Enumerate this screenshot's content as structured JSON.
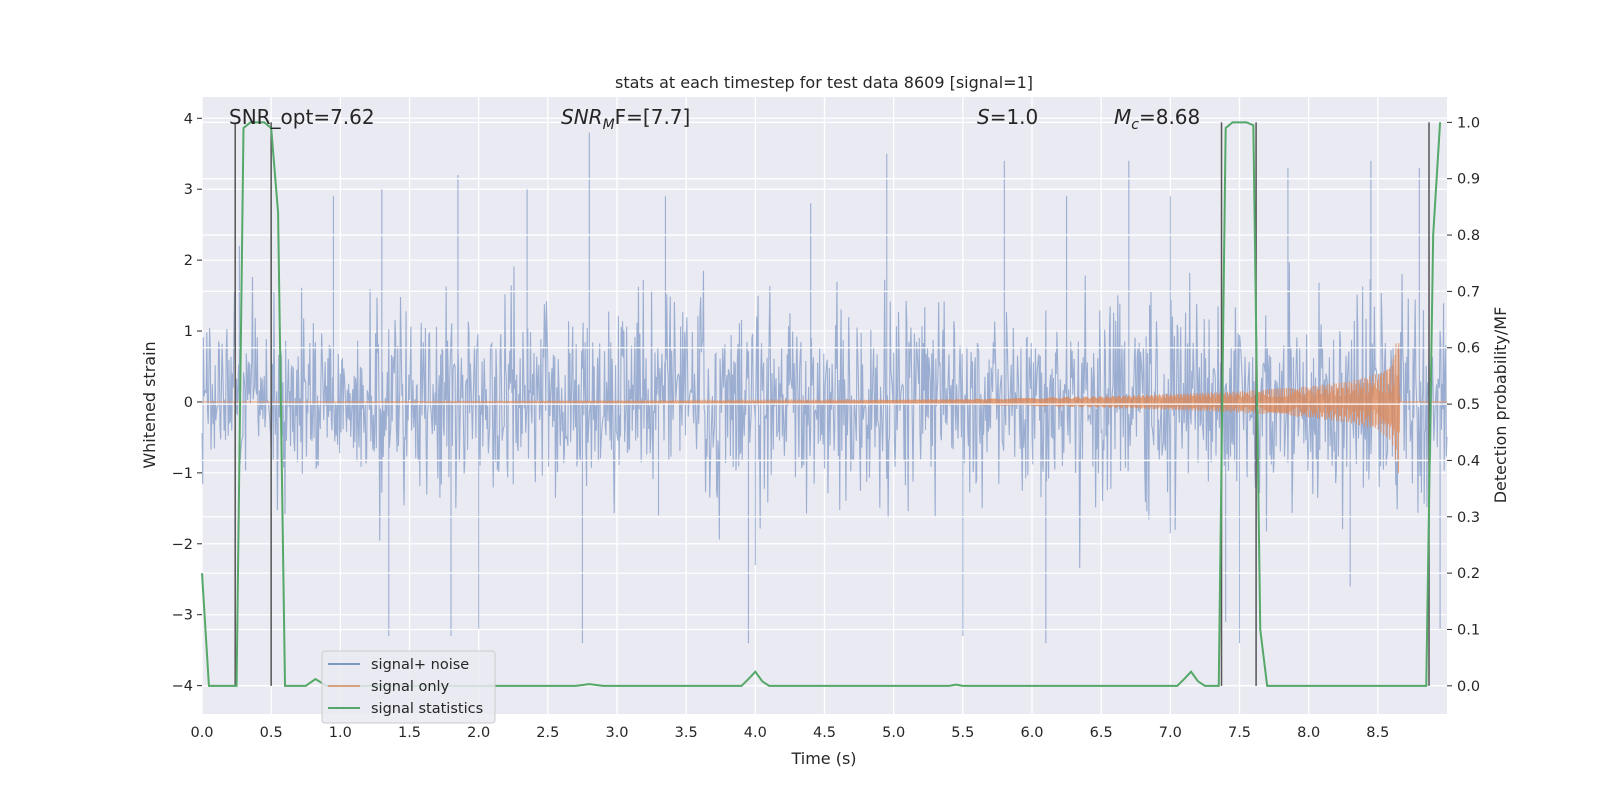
{
  "chart_data": {
    "type": "line",
    "title": "stats at each timestep for test data 8609 [signal=1]",
    "xlabel": "Time (s)",
    "ylabel": "Whitened strain",
    "y2label": "Detection probability/MF",
    "xlim": [
      0.0,
      9.0
    ],
    "ylim": [
      -4.4,
      4.3
    ],
    "y2lim": [
      -0.05,
      1.045
    ],
    "x_ticks": [
      "0.0",
      "0.5",
      "1.0",
      "1.5",
      "2.0",
      "2.5",
      "3.0",
      "3.5",
      "4.0",
      "4.5",
      "5.0",
      "5.5",
      "6.0",
      "6.5",
      "7.0",
      "7.5",
      "8.0",
      "8.5"
    ],
    "y_ticks": [
      "4",
      "3",
      "2",
      "1",
      "0",
      "−1",
      "−2",
      "−3",
      "−4"
    ],
    "y2_ticks": [
      "1.0",
      "0.9",
      "0.8",
      "0.7",
      "0.6",
      "0.5",
      "0.4",
      "0.3",
      "0.2",
      "0.1",
      "0.0"
    ],
    "grid": true,
    "legend_position": "lower-left",
    "annotations": {
      "snr_opt": "SNR_opt=7.62",
      "snr_mf_main": "SNR",
      "snr_mf_sub": "M",
      "snr_mf_rest": "F=[7.7]",
      "s_main": "S",
      "s_rest": "=1.0",
      "mc_main": "M",
      "mc_sub": "c",
      "mc_rest": "=8.68"
    },
    "series": [
      {
        "name": "signal+ noise",
        "color": "#4c72b0",
        "style": "dense noisy strain, amplitude ~±2 with spikes to about ±3.8",
        "spikes": [
          [
            0.27,
            2.2
          ],
          [
            0.5,
            2.3
          ],
          [
            0.95,
            2.9
          ],
          [
            1.3,
            3.0
          ],
          [
            1.35,
            -3.3
          ],
          [
            1.8,
            -3.3
          ],
          [
            1.85,
            3.2
          ],
          [
            2.0,
            -3.2
          ],
          [
            2.35,
            3.0
          ],
          [
            2.75,
            -3.4
          ],
          [
            2.8,
            3.8
          ],
          [
            3.3,
            -1.6
          ],
          [
            3.35,
            2.9
          ],
          [
            3.95,
            -3.4
          ],
          [
            4.0,
            -2.3
          ],
          [
            4.4,
            2.8
          ],
          [
            4.95,
            3.5
          ],
          [
            5.5,
            -3.3
          ],
          [
            5.8,
            3.4
          ],
          [
            6.1,
            -3.4
          ],
          [
            6.25,
            2.9
          ],
          [
            6.7,
            3.4
          ],
          [
            7.0,
            2.9
          ],
          [
            7.4,
            -3.1
          ],
          [
            7.5,
            -3.4
          ],
          [
            7.85,
            3.3
          ],
          [
            8.3,
            -2.6
          ],
          [
            8.45,
            3.4
          ],
          [
            8.8,
            3.3
          ],
          [
            8.95,
            -3.2
          ]
        ]
      },
      {
        "name": "signal only",
        "color": "#dd8452",
        "style": "chirp, amplitude ~0 until 4.5 s, grows to about ±1.0 at 8.65 s, then zero",
        "envelope": [
          [
            0.0,
            0.0
          ],
          [
            4.5,
            0.02
          ],
          [
            5.5,
            0.04
          ],
          [
            6.5,
            0.08
          ],
          [
            7.5,
            0.15
          ],
          [
            8.0,
            0.22
          ],
          [
            8.3,
            0.3
          ],
          [
            8.5,
            0.4
          ],
          [
            8.6,
            0.55
          ],
          [
            8.65,
            1.05
          ],
          [
            8.66,
            0.0
          ],
          [
            9.0,
            0.0
          ]
        ]
      },
      {
        "name": "signal statistics",
        "color": "#55a868",
        "axis": "right",
        "x": [
          0.0,
          0.05,
          0.1,
          0.15,
          0.2,
          0.25,
          0.3,
          0.35,
          0.4,
          0.45,
          0.5,
          0.55,
          0.6,
          0.65,
          0.75,
          0.82,
          0.9,
          2.7,
          2.8,
          2.9,
          3.9,
          3.95,
          4.0,
          4.05,
          4.1,
          4.15,
          5.4,
          5.45,
          5.5,
          7.05,
          7.1,
          7.15,
          7.2,
          7.25,
          7.3,
          7.35,
          7.4,
          7.45,
          7.5,
          7.55,
          7.6,
          7.65,
          7.7,
          7.75,
          8.85,
          8.9,
          8.95
        ],
        "values": [
          0.2,
          0.0,
          0.0,
          0.0,
          0.0,
          0.0,
          0.99,
          1.0,
          1.0,
          1.0,
          0.99,
          0.84,
          0.0,
          0.0,
          0.0,
          0.012,
          0.0,
          0.0,
          0.003,
          0.0,
          0.0,
          0.012,
          0.025,
          0.008,
          0.0,
          0.0,
          0.0,
          0.002,
          0.0,
          0.0,
          0.012,
          0.025,
          0.008,
          0.0,
          0.0,
          0.0,
          0.99,
          1.0,
          1.0,
          1.0,
          0.995,
          0.1,
          0.0,
          0.0,
          0.0,
          0.8,
          1.0
        ]
      }
    ],
    "vertical_markers": [
      {
        "name": "segment-start-1",
        "x": 0.24
      },
      {
        "name": "segment-end-1",
        "x": 0.5
      },
      {
        "name": "segment-start-2",
        "x": 7.37
      },
      {
        "name": "segment-end-2",
        "x": 7.62
      },
      {
        "name": "segment-start-3",
        "x": 8.87
      }
    ]
  }
}
